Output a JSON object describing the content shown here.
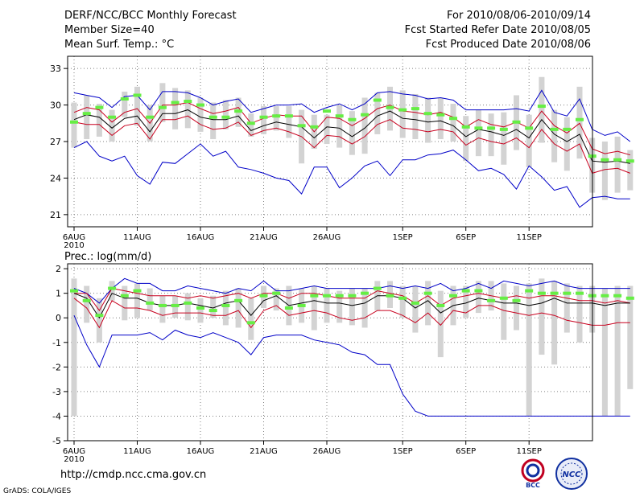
{
  "header": {
    "left": [
      "DERF/NCC/BCC Monthly Forecast",
      "Member Size=40",
      "Mean Surf. Temp.: °C"
    ],
    "right": [
      "For 2010/08/06-2010/09/14",
      "Fcst Started Refer Date 2010/08/05",
      "Fcst Produced Date 2010/08/06"
    ]
  },
  "footer": {
    "url": "http://cmdp.ncc.cma.gov.cn",
    "grads": "GrADS: COLA/IGES"
  },
  "logos": {
    "bcc": "BCC",
    "ncc": "NCC"
  },
  "colors": {
    "box": "#d3d3d3",
    "median": "#66ee44",
    "ens_mean": "#000000",
    "std": "#c8001e",
    "range": "#0000c8",
    "grid": "#808080"
  },
  "chart_data": [
    {
      "type": "line",
      "title": "Mean Surf. Temp.: °C",
      "x_tick_labels": [
        "6AUG",
        "11AUG",
        "16AUG",
        "21AUG",
        "26AUG",
        "1SEP",
        "6SEP",
        "11SEP"
      ],
      "x_tick_days": [
        1,
        6,
        11,
        16,
        21,
        27,
        32,
        37
      ],
      "x_sublabel": "2010",
      "days": 40,
      "ylim": [
        20,
        34
      ],
      "yticks": [
        21,
        24,
        27,
        30,
        33
      ],
      "series": [
        {
          "name": "max",
          "values": [
            31.0,
            30.8,
            30.6,
            29.8,
            30.7,
            30.8,
            29.6,
            31.1,
            31.1,
            31.0,
            30.6,
            30.0,
            30.3,
            30.5,
            29.4,
            29.7,
            30.0,
            30.0,
            30.1,
            29.4,
            29.8,
            30.1,
            29.6,
            30.1,
            31.0,
            31.1,
            30.9,
            30.8,
            30.5,
            30.6,
            30.4,
            29.6,
            29.6,
            29.6,
            29.6,
            29.7,
            29.5,
            31.2,
            29.4,
            29.1,
            30.5,
            28.0,
            27.5,
            27.8,
            27.0
          ]
        },
        {
          "name": "mean_plus_std",
          "values": [
            29.4,
            29.8,
            29.6,
            28.6,
            29.4,
            29.7,
            28.5,
            30.0,
            30.0,
            30.2,
            29.7,
            29.3,
            29.5,
            29.8,
            28.5,
            28.9,
            29.2,
            29.1,
            29.1,
            27.8,
            29.0,
            28.9,
            28.3,
            28.9,
            29.7,
            30.0,
            29.5,
            29.4,
            29.2,
            29.4,
            29.0,
            28.2,
            28.8,
            28.4,
            28.2,
            28.6,
            28.1,
            29.5,
            28.3,
            27.7,
            28.5,
            26.4,
            26.0,
            26.2,
            25.9
          ]
        },
        {
          "name": "ens_mean",
          "values": [
            28.8,
            29.2,
            29.0,
            28.1,
            28.9,
            29.1,
            27.8,
            29.3,
            29.3,
            29.6,
            29.0,
            28.8,
            28.8,
            29.1,
            27.9,
            28.3,
            28.6,
            28.4,
            28.2,
            27.3,
            28.2,
            28.1,
            27.4,
            28.1,
            29.1,
            29.5,
            28.9,
            28.8,
            28.6,
            28.7,
            28.3,
            27.4,
            28.0,
            27.8,
            27.5,
            28.0,
            27.3,
            28.8,
            27.6,
            27.0,
            27.6,
            25.4,
            25.3,
            25.4,
            25.2
          ]
        },
        {
          "name": "mean_minus_std",
          "values": [
            28.6,
            28.4,
            28.4,
            27.5,
            28.3,
            28.5,
            27.2,
            28.8,
            28.8,
            29.1,
            28.4,
            28.0,
            28.1,
            28.6,
            27.5,
            27.9,
            28.1,
            27.8,
            27.4,
            26.5,
            27.5,
            27.4,
            26.8,
            27.4,
            28.4,
            28.8,
            28.1,
            28.0,
            27.8,
            28.0,
            27.8,
            26.7,
            27.3,
            27.0,
            26.8,
            27.3,
            26.5,
            28.0,
            26.8,
            26.2,
            26.8,
            24.4,
            24.7,
            24.8,
            24.4
          ]
        },
        {
          "name": "min",
          "values": [
            26.5,
            27.0,
            25.8,
            25.4,
            25.8,
            24.2,
            23.5,
            25.3,
            25.2,
            26.0,
            26.8,
            25.8,
            26.2,
            24.9,
            24.7,
            24.4,
            24.0,
            23.8,
            22.7,
            24.9,
            24.9,
            23.2,
            24.0,
            25.0,
            25.4,
            24.2,
            25.5,
            25.5,
            25.9,
            26.0,
            26.3,
            25.5,
            24.6,
            24.8,
            24.3,
            23.1,
            25.0,
            24.1,
            23.0,
            23.3,
            21.6,
            22.4,
            22.5,
            22.3,
            22.3
          ]
        },
        {
          "name": "median",
          "values": [
            28.6,
            29.3,
            29.8,
            29.0,
            30.5,
            30.8,
            29.0,
            29.8,
            30.2,
            30.3,
            30.0,
            29.0,
            29.0,
            29.5,
            28.5,
            29.0,
            29.1,
            29.1,
            28.3,
            28.2,
            29.5,
            29.1,
            28.8,
            29.2,
            30.4,
            29.8,
            29.6,
            29.7,
            29.3,
            29.2,
            28.9,
            28.2,
            28.1,
            28.1,
            28.0,
            28.6,
            28.1,
            29.9,
            28.0,
            28.0,
            28.8,
            25.8,
            25.5,
            25.5,
            25.4
          ]
        }
      ],
      "boxes": [
        [
          26.5,
          30.2
        ],
        [
          27.2,
          30.8
        ],
        [
          27.4,
          30.1
        ],
        [
          27.0,
          29.6
        ],
        [
          29.0,
          31.1
        ],
        [
          28.3,
          31.5
        ],
        [
          27.0,
          30.0
        ],
        [
          28.6,
          31.8
        ],
        [
          28.0,
          31.4
        ],
        [
          28.1,
          31.2
        ],
        [
          27.8,
          30.6
        ],
        [
          27.2,
          30.2
        ],
        [
          28.0,
          30.4
        ],
        [
          28.2,
          30.6
        ],
        [
          27.4,
          29.3
        ],
        [
          27.6,
          29.9
        ],
        [
          27.9,
          29.9
        ],
        [
          27.3,
          29.9
        ],
        [
          25.2,
          29.6
        ],
        [
          26.4,
          29.2
        ],
        [
          26.8,
          29.2
        ],
        [
          26.5,
          30.0
        ],
        [
          25.9,
          29.5
        ],
        [
          26.0,
          30.6
        ],
        [
          27.6,
          31.0
        ],
        [
          27.9,
          31.5
        ],
        [
          27.3,
          31.2
        ],
        [
          27.2,
          30.9
        ],
        [
          26.9,
          30.6
        ],
        [
          27.2,
          30.6
        ],
        [
          27.0,
          30.1
        ],
        [
          25.4,
          29.1
        ],
        [
          25.8,
          29.6
        ],
        [
          25.8,
          29.3
        ],
        [
          25.1,
          29.4
        ],
        [
          26.3,
          30.8
        ],
        [
          24.9,
          29.2
        ],
        [
          26.9,
          32.3
        ],
        [
          25.3,
          29.6
        ],
        [
          24.6,
          29.0
        ],
        [
          25.6,
          31.5
        ],
        [
          22.8,
          27.3
        ],
        [
          22.2,
          27.0
        ],
        [
          22.8,
          27.4
        ],
        [
          23.0,
          26.3
        ]
      ]
    },
    {
      "type": "line",
      "title": "Prec.: log(mm/d)",
      "x_tick_labels": [
        "6AUG",
        "11AUG",
        "16AUG",
        "21AUG",
        "26AUG",
        "1SEP",
        "6SEP",
        "11SEP"
      ],
      "x_tick_days": [
        1,
        6,
        11,
        16,
        21,
        27,
        32,
        37
      ],
      "x_sublabel": "2010",
      "days": 40,
      "ylim": [
        -5,
        2.2
      ],
      "yticks": [
        -5,
        -4,
        -3,
        -2,
        -1,
        0,
        1,
        2
      ],
      "series": [
        {
          "name": "max",
          "values": [
            1.2,
            1.0,
            0.6,
            1.2,
            1.6,
            1.4,
            1.4,
            1.1,
            1.1,
            1.3,
            1.2,
            1.1,
            1.0,
            1.2,
            1.1,
            1.5,
            1.1,
            1.1,
            1.2,
            1.3,
            1.2,
            1.2,
            1.2,
            1.2,
            1.2,
            1.3,
            1.2,
            1.3,
            1.2,
            1.4,
            1.1,
            1.2,
            1.4,
            1.2,
            1.5,
            1.4,
            1.3,
            1.4,
            1.5,
            1.3,
            1.2,
            1.2,
            1.2,
            1.2,
            1.2
          ]
        },
        {
          "name": "mean_plus_std",
          "values": [
            1.0,
            1.0,
            0.3,
            1.2,
            1.1,
            1.0,
            0.9,
            0.9,
            0.9,
            0.8,
            0.9,
            0.8,
            0.9,
            1.0,
            0.8,
            1.0,
            1.0,
            0.8,
            1.0,
            1.0,
            0.9,
            0.8,
            0.8,
            0.8,
            1.1,
            1.0,
            0.9,
            0.6,
            0.9,
            0.5,
            0.8,
            0.9,
            1.0,
            0.9,
            0.8,
            0.9,
            0.8,
            0.9,
            0.9,
            0.8,
            0.7,
            0.7,
            0.6,
            0.7,
            0.6
          ]
        },
        {
          "name": "ens_mean",
          "values": [
            1.0,
            0.8,
            0.0,
            1.0,
            0.8,
            0.8,
            0.6,
            0.5,
            0.5,
            0.6,
            0.5,
            0.4,
            0.6,
            0.7,
            0.1,
            0.7,
            0.9,
            0.5,
            0.6,
            0.7,
            0.6,
            0.6,
            0.5,
            0.6,
            0.9,
            0.9,
            0.8,
            0.4,
            0.7,
            0.2,
            0.5,
            0.6,
            0.8,
            0.7,
            0.6,
            0.6,
            0.5,
            0.6,
            0.8,
            0.6,
            0.6,
            0.6,
            0.5,
            0.6,
            0.6
          ]
        },
        {
          "name": "mean_minus_std",
          "values": [
            0.8,
            0.4,
            -0.4,
            0.7,
            0.4,
            0.4,
            0.3,
            0.1,
            0.2,
            0.2,
            0.2,
            0.1,
            0.1,
            0.3,
            -0.4,
            0.3,
            0.5,
            0.1,
            0.2,
            0.3,
            0.2,
            0.0,
            -0.1,
            0.0,
            0.3,
            0.3,
            0.1,
            -0.2,
            0.2,
            -0.3,
            0.3,
            0.2,
            0.5,
            0.5,
            0.3,
            0.2,
            0.1,
            0.2,
            0.1,
            -0.1,
            -0.2,
            -0.3,
            -0.3,
            -0.2,
            -0.2
          ]
        },
        {
          "name": "min",
          "values": [
            0.1,
            -1.1,
            -2.0,
            -0.7,
            -0.7,
            -0.7,
            -0.6,
            -0.9,
            -0.5,
            -0.7,
            -0.8,
            -0.6,
            -0.8,
            -1.0,
            -1.5,
            -0.8,
            -0.7,
            -0.7,
            -0.7,
            -0.9,
            -1.0,
            -1.1,
            -1.4,
            -1.5,
            -1.9,
            -1.9,
            -3.1,
            -3.8,
            -4.0,
            -4.0,
            -4.0,
            -4.0,
            -4.0,
            -4.0,
            -4.0,
            -4.0,
            -4.0,
            -4.0,
            -4.0,
            -4.0,
            -4.0,
            -4.0,
            -4.0,
            -4.0,
            -4.0
          ]
        },
        {
          "name": "median",
          "values": [
            1.1,
            0.7,
            0.1,
            1.2,
            0.9,
            1.1,
            0.6,
            0.5,
            0.5,
            0.6,
            0.4,
            0.3,
            0.5,
            0.7,
            -0.2,
            0.9,
            1.0,
            0.4,
            0.5,
            0.9,
            0.9,
            0.9,
            0.9,
            1.0,
            1.2,
            0.9,
            0.8,
            0.6,
            1.0,
            0.5,
            0.9,
            1.1,
            1.1,
            0.7,
            0.8,
            0.7,
            1.1,
            1.0,
            1.0,
            1.0,
            1.0,
            0.9,
            0.9,
            0.9,
            0.8
          ]
        }
      ],
      "boxes": [
        [
          -4.0,
          1.6
        ],
        [
          -0.2,
          1.3
        ],
        [
          -1.0,
          0.8
        ],
        [
          0.7,
          1.5
        ],
        [
          -0.1,
          1.3
        ],
        [
          0.0,
          1.4
        ],
        [
          0.3,
          1.2
        ],
        [
          -0.2,
          0.9
        ],
        [
          0.0,
          0.9
        ],
        [
          -0.1,
          1.0
        ],
        [
          -0.2,
          0.8
        ],
        [
          0.0,
          0.9
        ],
        [
          -0.3,
          1.1
        ],
        [
          -0.4,
          1.2
        ],
        [
          -0.9,
          0.8
        ],
        [
          0.4,
          1.3
        ],
        [
          0.3,
          1.2
        ],
        [
          -0.3,
          1.3
        ],
        [
          -0.2,
          1.2
        ],
        [
          -0.5,
          1.3
        ],
        [
          -0.2,
          1.2
        ],
        [
          -0.2,
          1.1
        ],
        [
          -0.3,
          1.2
        ],
        [
          -0.4,
          1.2
        ],
        [
          0.3,
          1.5
        ],
        [
          0.4,
          1.5
        ],
        [
          0.0,
          1.3
        ],
        [
          -0.6,
          1.3
        ],
        [
          -0.3,
          1.5
        ],
        [
          -1.6,
          1.1
        ],
        [
          -0.3,
          1.3
        ],
        [
          0.0,
          1.3
        ],
        [
          0.2,
          1.5
        ],
        [
          0.3,
          1.5
        ],
        [
          -0.9,
          1.4
        ],
        [
          -0.5,
          1.3
        ],
        [
          -4.0,
          1.4
        ],
        [
          -1.5,
          1.6
        ],
        [
          -1.9,
          1.5
        ],
        [
          -0.6,
          1.4
        ],
        [
          -1.0,
          1.3
        ],
        [
          -0.6,
          1.3
        ],
        [
          -4.0,
          1.2
        ],
        [
          -4.0,
          1.3
        ],
        [
          -2.9,
          1.3
        ]
      ]
    }
  ]
}
